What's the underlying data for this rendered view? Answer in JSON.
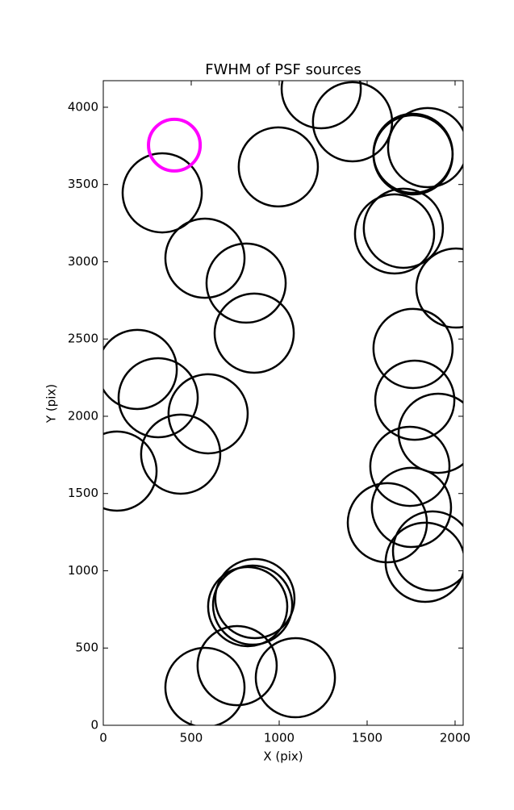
{
  "chart_data": {
    "type": "scatter",
    "title": "FWHM of PSF sources",
    "x_label": "X (pix)",
    "y_label": "Y (pix)",
    "xlim": [
      0,
      2046
    ],
    "ylim": [
      0,
      4172
    ],
    "xticks": [
      0,
      500,
      1000,
      1500,
      2000
    ],
    "yticks": [
      0,
      500,
      1000,
      1500,
      2000,
      2500,
      3000,
      3500,
      4000
    ],
    "grid": false,
    "series": [
      {
        "color": "#000000",
        "line_width": 2.5,
        "x": [
          1239,
          1417,
          1761,
          1844,
          1761,
          995,
          335,
          1706,
          1656,
          2005,
          578,
          812,
          858,
          1761,
          193,
          312,
          596,
          1771,
          1904,
          440,
          78,
          1743,
          1752,
          1615,
          1872,
          1830,
          862,
          849,
          821,
          761,
          578,
          1092
        ],
        "values": [
          4120,
          3906,
          3692,
          3739,
          3702,
          3614,
          3446,
          3217,
          3180,
          2830,
          3023,
          2862,
          2538,
          2439,
          2303,
          2120,
          2016,
          2104,
          1890,
          1755,
          1645,
          1676,
          1410,
          1311,
          1128,
          1055,
          820,
          778,
          768,
          386,
          245,
          308
        ],
        "sizes": [
          225,
          225,
          225,
          225,
          225,
          225,
          225,
          225,
          225,
          225,
          225,
          225,
          225,
          225,
          225,
          225,
          225,
          225,
          225,
          225,
          225,
          225,
          225,
          225,
          225,
          225,
          225,
          225,
          225,
          225,
          225,
          225
        ]
      },
      {
        "color": "#ff00ff",
        "line_width": 4,
        "x": [
          404
        ],
        "values": [
          3755
        ],
        "sizes": [
          147
        ]
      }
    ]
  }
}
